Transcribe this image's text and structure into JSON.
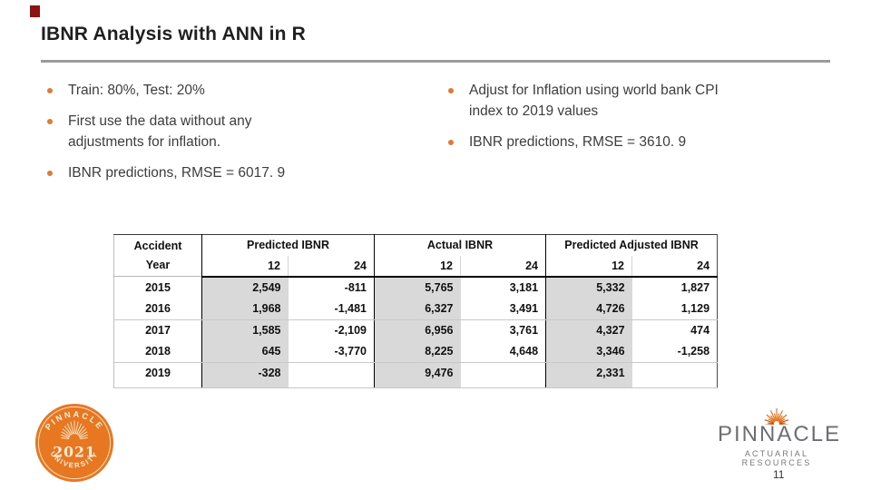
{
  "title": "IBNR Analysis with ANN in R",
  "colors": {
    "accent_orange": "#E87722",
    "table_shade": "#D9D9D9",
    "corner_red": "#8C1410",
    "logo_gray": "#6D6E71"
  },
  "bullets_left": [
    {
      "lines": [
        "Train: 80%, Test: 20%"
      ]
    },
    {
      "lines": [
        "First use the data without any",
        "adjustments for inflation."
      ]
    },
    {
      "lines": [
        "IBNR predictions, RMSE = 6017. 9"
      ]
    }
  ],
  "bullets_right": [
    {
      "lines": [
        "Adjust for Inflation using world bank CPI",
        "index to 2019 values"
      ]
    },
    {
      "lines": [
        "IBNR predictions, RMSE = 3610. 9"
      ]
    }
  ],
  "table": {
    "col1_lines": [
      "Accident",
      "Year"
    ],
    "groups": [
      "Predicted IBNR",
      "Actual IBNR",
      "Predicted Adjusted IBNR"
    ],
    "subheaders": [
      "12",
      "24",
      "12",
      "24",
      "12",
      "24"
    ],
    "rows": [
      {
        "year": "2015",
        "values": [
          "2,549",
          "-811",
          "5,765",
          "3,181",
          "5,332",
          "1,827"
        ]
      },
      {
        "year": "2016",
        "values": [
          "1,968",
          "-1,481",
          "6,327",
          "3,491",
          "4,726",
          "1,129"
        ]
      },
      {
        "year": "2017",
        "values": [
          "1,585",
          "-2,109",
          "6,956",
          "3,761",
          "4,327",
          "474"
        ]
      },
      {
        "year": "2018",
        "values": [
          "645",
          "-3,770",
          "8,225",
          "4,648",
          "3,346",
          "-1,258"
        ]
      },
      {
        "year": "2019",
        "values": [
          "-328",
          "",
          "9,476",
          "",
          "2,331",
          ""
        ]
      }
    ]
  },
  "badge": {
    "top": "PINNACLE",
    "year": "2021",
    "bottom": "UNIVERSITY"
  },
  "logo": {
    "name": "PINNACLE",
    "tagline": "ACTUARIAL RESOURCES"
  },
  "page_number": "11"
}
